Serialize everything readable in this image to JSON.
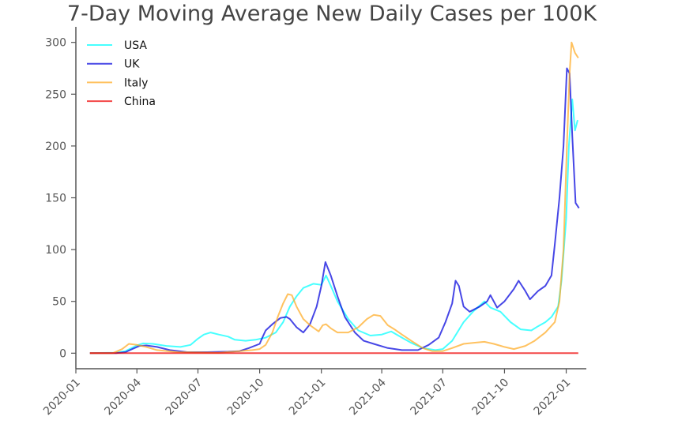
{
  "chart_data": {
    "type": "line",
    "title": "7-Day Moving Average New Daily Cases per 100K",
    "xlabel": "",
    "ylabel": "",
    "xlim": [
      "2020-01-01",
      "2022-01-31"
    ],
    "ylim": [
      -15,
      315
    ],
    "x_ticks": [
      "2020-01",
      "2020-04",
      "2020-07",
      "2020-10",
      "2021-01",
      "2021-04",
      "2021-07",
      "2021-10",
      "2022-01"
    ],
    "y_ticks": [
      0,
      50,
      100,
      150,
      200,
      250,
      300
    ],
    "grid": false,
    "legend_position": "top-left",
    "series": [
      {
        "name": "USA",
        "color": "#00FFFF",
        "points": [
          [
            "2020-01-22",
            0
          ],
          [
            "2020-03-01",
            0.5
          ],
          [
            "2020-03-15",
            2
          ],
          [
            "2020-04-01",
            7.5
          ],
          [
            "2020-04-10",
            9.5
          ],
          [
            "2020-04-25",
            9
          ],
          [
            "2020-05-15",
            7
          ],
          [
            "2020-06-05",
            6
          ],
          [
            "2020-06-20",
            8
          ],
          [
            "2020-07-01",
            14
          ],
          [
            "2020-07-10",
            18
          ],
          [
            "2020-07-20",
            20
          ],
          [
            "2020-08-01",
            18
          ],
          [
            "2020-08-15",
            16
          ],
          [
            "2020-08-25",
            13
          ],
          [
            "2020-09-10",
            12
          ],
          [
            "2020-09-25",
            13
          ],
          [
            "2020-10-10",
            15
          ],
          [
            "2020-10-25",
            20
          ],
          [
            "2020-11-05",
            30
          ],
          [
            "2020-11-15",
            45
          ],
          [
            "2020-11-25",
            55
          ],
          [
            "2020-12-05",
            63
          ],
          [
            "2020-12-20",
            67
          ],
          [
            "2021-01-01",
            66
          ],
          [
            "2021-01-08",
            75
          ],
          [
            "2021-01-15",
            65
          ],
          [
            "2021-01-25",
            50
          ],
          [
            "2021-02-10",
            33
          ],
          [
            "2021-02-25",
            22
          ],
          [
            "2021-03-15",
            17
          ],
          [
            "2021-04-01",
            18
          ],
          [
            "2021-04-15",
            21
          ],
          [
            "2021-05-01",
            15
          ],
          [
            "2021-05-15",
            10
          ],
          [
            "2021-06-01",
            5
          ],
          [
            "2021-06-20",
            3
          ],
          [
            "2021-07-01",
            4
          ],
          [
            "2021-07-15",
            12
          ],
          [
            "2021-08-01",
            30
          ],
          [
            "2021-08-15",
            40
          ],
          [
            "2021-09-01",
            50
          ],
          [
            "2021-09-10",
            44
          ],
          [
            "2021-09-25",
            40
          ],
          [
            "2021-10-10",
            30
          ],
          [
            "2021-10-25",
            23
          ],
          [
            "2021-11-10",
            22
          ],
          [
            "2021-11-20",
            26
          ],
          [
            "2021-12-01",
            30
          ],
          [
            "2021-12-10",
            35
          ],
          [
            "2021-12-20",
            45
          ],
          [
            "2021-12-25",
            70
          ],
          [
            "2022-01-01",
            130
          ],
          [
            "2022-01-05",
            200
          ],
          [
            "2022-01-10",
            245
          ],
          [
            "2022-01-14",
            215
          ],
          [
            "2022-01-18",
            225
          ]
        ]
      },
      {
        "name": "UK",
        "color": "#0000DD",
        "points": [
          [
            "2020-01-22",
            0
          ],
          [
            "2020-03-01",
            0
          ],
          [
            "2020-03-15",
            1
          ],
          [
            "2020-03-25",
            4
          ],
          [
            "2020-04-05",
            7
          ],
          [
            "2020-04-15",
            7.5
          ],
          [
            "2020-05-01",
            6
          ],
          [
            "2020-05-20",
            3
          ],
          [
            "2020-06-15",
            1
          ],
          [
            "2020-07-15",
            1
          ],
          [
            "2020-08-15",
            1.5
          ],
          [
            "2020-09-01",
            2
          ],
          [
            "2020-09-15",
            5
          ],
          [
            "2020-10-01",
            9
          ],
          [
            "2020-10-05",
            15
          ],
          [
            "2020-10-10",
            22
          ],
          [
            "2020-10-20",
            28
          ],
          [
            "2020-11-01",
            34
          ],
          [
            "2020-11-10",
            35
          ],
          [
            "2020-11-15",
            33
          ],
          [
            "2020-11-25",
            25
          ],
          [
            "2020-12-05",
            20
          ],
          [
            "2020-12-15",
            28
          ],
          [
            "2020-12-25",
            45
          ],
          [
            "2021-01-01",
            65
          ],
          [
            "2021-01-07",
            88
          ],
          [
            "2021-01-15",
            75
          ],
          [
            "2021-01-25",
            55
          ],
          [
            "2021-02-05",
            35
          ],
          [
            "2021-02-20",
            20
          ],
          [
            "2021-03-05",
            12
          ],
          [
            "2021-03-20",
            9
          ],
          [
            "2021-04-10",
            5
          ],
          [
            "2021-05-01",
            3
          ],
          [
            "2021-05-25",
            3
          ],
          [
            "2021-06-10",
            8
          ],
          [
            "2021-06-25",
            15
          ],
          [
            "2021-07-05",
            30
          ],
          [
            "2021-07-15",
            48
          ],
          [
            "2021-07-20",
            70
          ],
          [
            "2021-07-25",
            65
          ],
          [
            "2021-08-01",
            45
          ],
          [
            "2021-08-10",
            40
          ],
          [
            "2021-08-25",
            45
          ],
          [
            "2021-09-05",
            50
          ],
          [
            "2021-09-10",
            56
          ],
          [
            "2021-09-20",
            44
          ],
          [
            "2021-10-01",
            50
          ],
          [
            "2021-10-15",
            62
          ],
          [
            "2021-10-22",
            70
          ],
          [
            "2021-11-01",
            60
          ],
          [
            "2021-11-08",
            52
          ],
          [
            "2021-11-20",
            60
          ],
          [
            "2021-12-01",
            65
          ],
          [
            "2021-12-10",
            75
          ],
          [
            "2021-12-15",
            105
          ],
          [
            "2021-12-22",
            150
          ],
          [
            "2021-12-28",
            200
          ],
          [
            "2022-01-02",
            275
          ],
          [
            "2022-01-06",
            270
          ],
          [
            "2022-01-10",
            210
          ],
          [
            "2022-01-15",
            145
          ],
          [
            "2022-01-20",
            140
          ]
        ]
      },
      {
        "name": "Italy",
        "color": "#FFAA22",
        "points": [
          [
            "2020-01-22",
            0
          ],
          [
            "2020-02-25",
            0
          ],
          [
            "2020-03-10",
            4
          ],
          [
            "2020-03-20",
            9
          ],
          [
            "2020-04-01",
            8
          ],
          [
            "2020-04-15",
            6
          ],
          [
            "2020-05-01",
            3
          ],
          [
            "2020-06-01",
            1
          ],
          [
            "2020-08-01",
            0.5
          ],
          [
            "2020-09-01",
            2
          ],
          [
            "2020-09-20",
            3
          ],
          [
            "2020-10-01",
            4
          ],
          [
            "2020-10-10",
            8
          ],
          [
            "2020-10-20",
            20
          ],
          [
            "2020-10-28",
            35
          ],
          [
            "2020-11-05",
            48
          ],
          [
            "2020-11-12",
            57
          ],
          [
            "2020-11-18",
            56
          ],
          [
            "2020-11-25",
            45
          ],
          [
            "2020-12-05",
            33
          ],
          [
            "2020-12-15",
            27
          ],
          [
            "2020-12-28",
            21
          ],
          [
            "2021-01-03",
            27
          ],
          [
            "2021-01-08",
            28
          ],
          [
            "2021-01-15",
            24
          ],
          [
            "2021-01-25",
            20
          ],
          [
            "2021-02-10",
            20
          ],
          [
            "2021-02-25",
            25
          ],
          [
            "2021-03-10",
            33
          ],
          [
            "2021-03-20",
            37
          ],
          [
            "2021-03-30",
            36
          ],
          [
            "2021-04-10",
            27
          ],
          [
            "2021-04-20",
            23
          ],
          [
            "2021-05-01",
            18
          ],
          [
            "2021-05-15",
            12
          ],
          [
            "2021-06-01",
            5
          ],
          [
            "2021-06-15",
            2
          ],
          [
            "2021-07-01",
            2
          ],
          [
            "2021-07-15",
            5
          ],
          [
            "2021-08-01",
            9
          ],
          [
            "2021-08-15",
            10
          ],
          [
            "2021-09-01",
            11
          ],
          [
            "2021-09-15",
            9
          ],
          [
            "2021-10-01",
            6
          ],
          [
            "2021-10-15",
            4
          ],
          [
            "2021-11-01",
            7
          ],
          [
            "2021-11-15",
            12
          ],
          [
            "2021-12-01",
            20
          ],
          [
            "2021-12-15",
            30
          ],
          [
            "2021-12-22",
            50
          ],
          [
            "2021-12-28",
            100
          ],
          [
            "2022-01-02",
            200
          ],
          [
            "2022-01-06",
            270
          ],
          [
            "2022-01-09",
            300
          ],
          [
            "2022-01-14",
            290
          ],
          [
            "2022-01-19",
            285
          ]
        ]
      },
      {
        "name": "China",
        "color": "#EE0000",
        "points": [
          [
            "2020-01-22",
            0
          ],
          [
            "2022-01-19",
            0
          ]
        ]
      }
    ]
  }
}
